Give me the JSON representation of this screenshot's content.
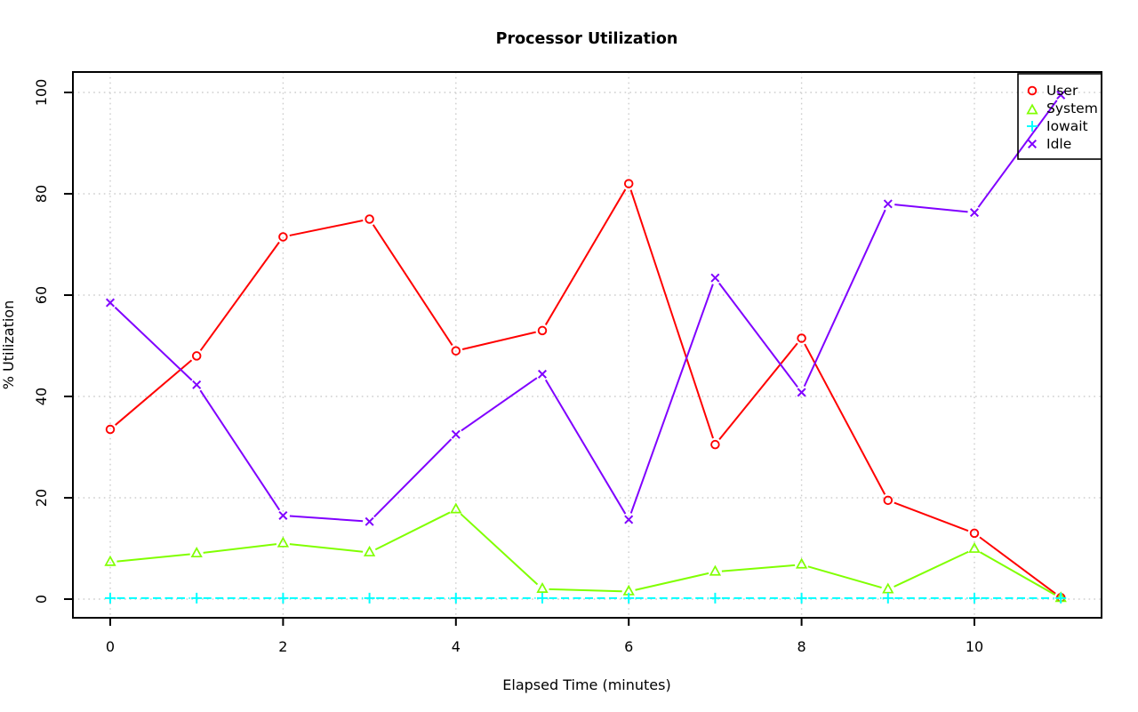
{
  "chart_data": {
    "type": "line",
    "title": "Processor Utilization",
    "xlabel": "Elapsed Time (minutes)",
    "ylabel": "% Utilization",
    "x": [
      0,
      1,
      2,
      3,
      4,
      5,
      6,
      7,
      8,
      9,
      10,
      11
    ],
    "x_ticks": [
      0,
      2,
      4,
      6,
      8,
      10
    ],
    "y_ticks": [
      0,
      20,
      40,
      60,
      80,
      100
    ],
    "xlim": [
      -0.44,
      11.44
    ],
    "ylim": [
      0,
      104
    ],
    "grid": "dotted light-gray horizontal and vertical",
    "legend_position": "top-right",
    "background": "#ffffff",
    "series": [
      {
        "name": "User",
        "color": "#FF0000",
        "marker": "circle",
        "line": "solid",
        "values": [
          33.5,
          48,
          71.5,
          75,
          49,
          53,
          82,
          30.5,
          51.5,
          19.5,
          13,
          0.3
        ]
      },
      {
        "name": "System",
        "color": "#80FF00",
        "marker": "triangle",
        "line": "solid",
        "values": [
          7.3,
          9,
          11,
          9.2,
          17.7,
          2,
          1.5,
          5.4,
          6.8,
          1.9,
          9.9,
          0.2
        ]
      },
      {
        "name": "Iowait",
        "color": "#00FFFF",
        "marker": "plus",
        "line": "dashed",
        "values": [
          0.2,
          0.2,
          0.2,
          0.2,
          0.2,
          0.2,
          0.2,
          0.2,
          0.2,
          0.2,
          0.2,
          0.2
        ]
      },
      {
        "name": "Idle",
        "color": "#8000FF",
        "marker": "x",
        "line": "solid",
        "values": [
          58.5,
          42.3,
          16.5,
          15.3,
          32.5,
          44.4,
          15.7,
          63.4,
          40.8,
          78,
          76.3,
          99.5
        ]
      }
    ]
  }
}
